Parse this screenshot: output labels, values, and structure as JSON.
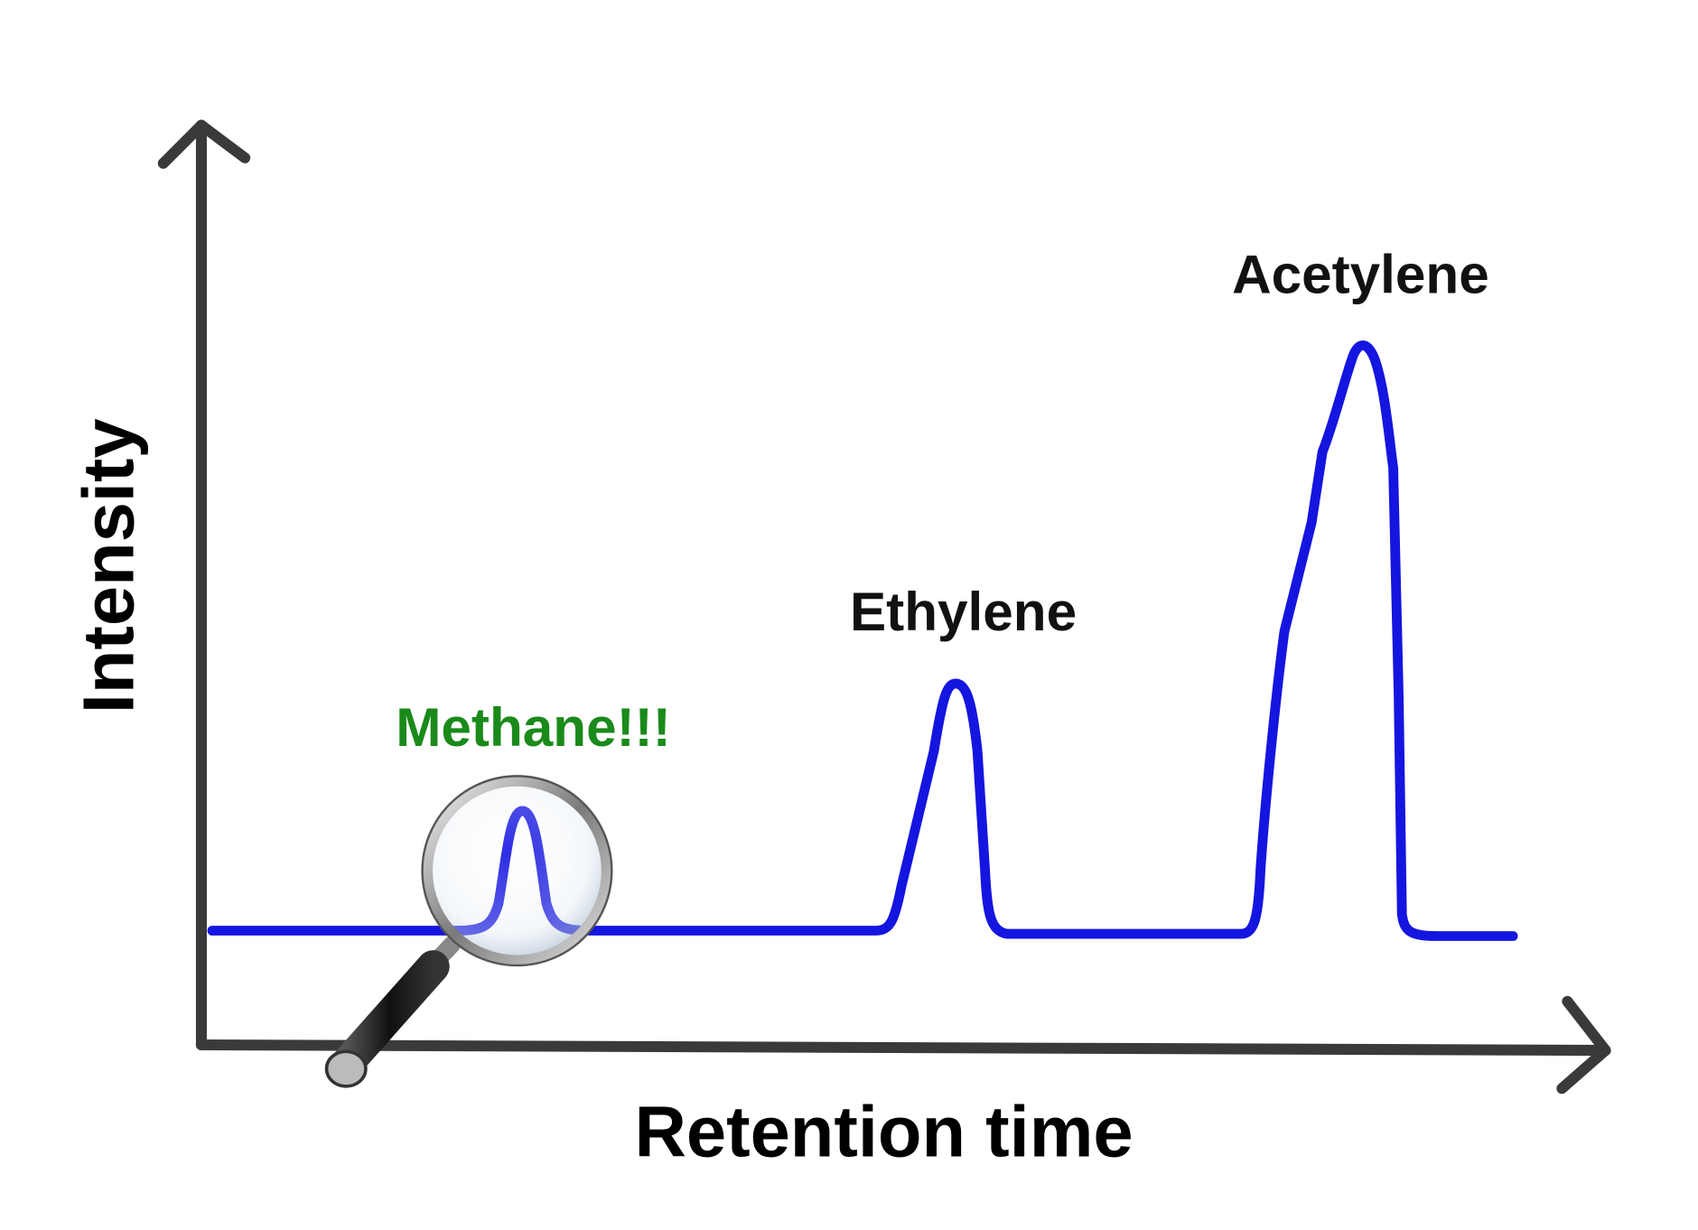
{
  "axes": {
    "x_label": "Retention time",
    "y_label": "Intensity"
  },
  "peaks": [
    {
      "label": "Methane!!!"
    },
    {
      "label": "Ethylene"
    },
    {
      "label": "Acetylene"
    }
  ]
}
